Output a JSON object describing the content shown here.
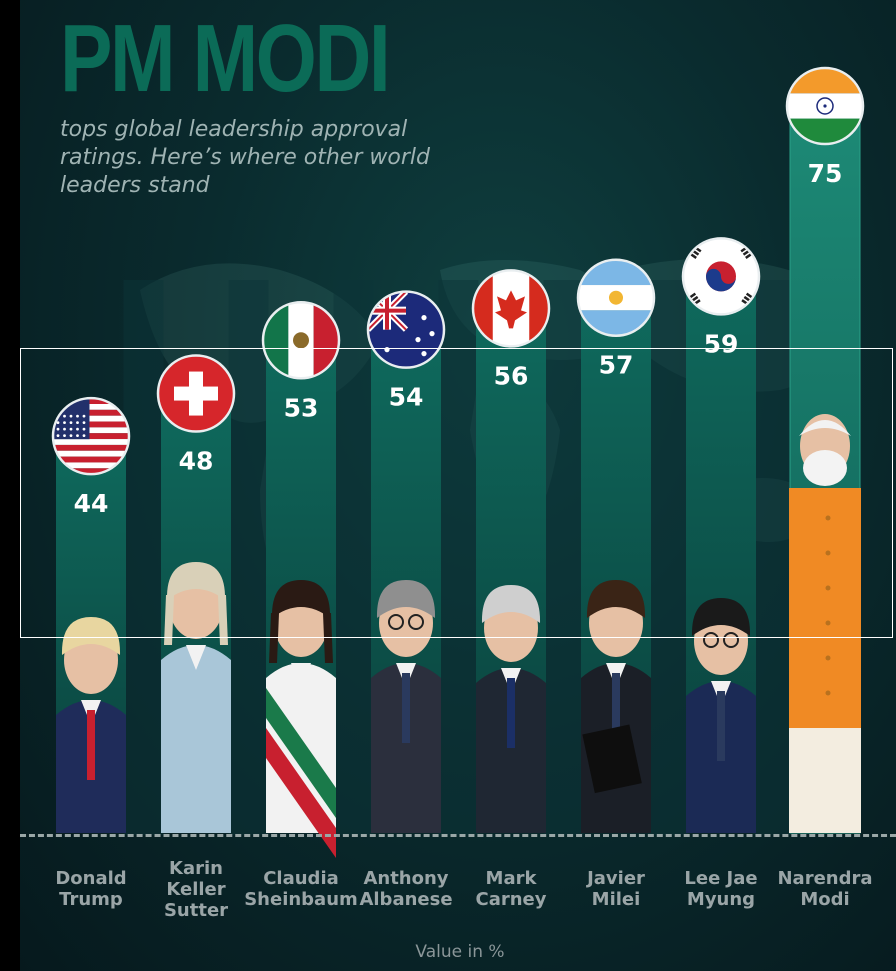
{
  "header": {
    "title": "PM MODI",
    "subtitle": "tops global leadership approval ratings. Here’s where other world leaders stand"
  },
  "chart_data": {
    "type": "bar",
    "title": "PM MODI",
    "subtitle": "tops global leadership approval ratings. Here’s where other world leaders stand",
    "categories": [
      "Donald Trump",
      "Karin Keller Sutter",
      "Claudia Sheinbaum",
      "Anthony Albanese",
      "Mark Carney",
      "Javier Milei",
      "Lee Jae Myung",
      "Narendra Modi"
    ],
    "values": [
      44,
      48,
      53,
      54,
      56,
      57,
      59,
      75
    ],
    "xlabel": "Value in %",
    "ylabel": "",
    "flags": [
      "flag-usa-icon",
      "flag-switzerland-icon",
      "flag-mexico-icon",
      "flag-australia-icon",
      "flag-canada-icon",
      "flag-argentina-icon",
      "flag-south-korea-icon",
      "flag-india-icon"
    ],
    "highlight_color": "#f08a24",
    "bar_color": "#0e5b52"
  },
  "people": [
    {
      "lines": [
        "Donald",
        "Trump"
      ]
    },
    {
      "lines": [
        "Karin",
        "Keller",
        "Sutter"
      ]
    },
    {
      "lines": [
        "Claudia",
        "Sheinbaum"
      ]
    },
    {
      "lines": [
        "Anthony",
        "Albanese"
      ]
    },
    {
      "lines": [
        "Mark",
        "Carney"
      ]
    },
    {
      "lines": [
        "Javier",
        "Milei"
      ]
    },
    {
      "lines": [
        "Lee Jae",
        "Myung"
      ]
    },
    {
      "lines": [
        "Narendra",
        "Modi"
      ]
    }
  ]
}
